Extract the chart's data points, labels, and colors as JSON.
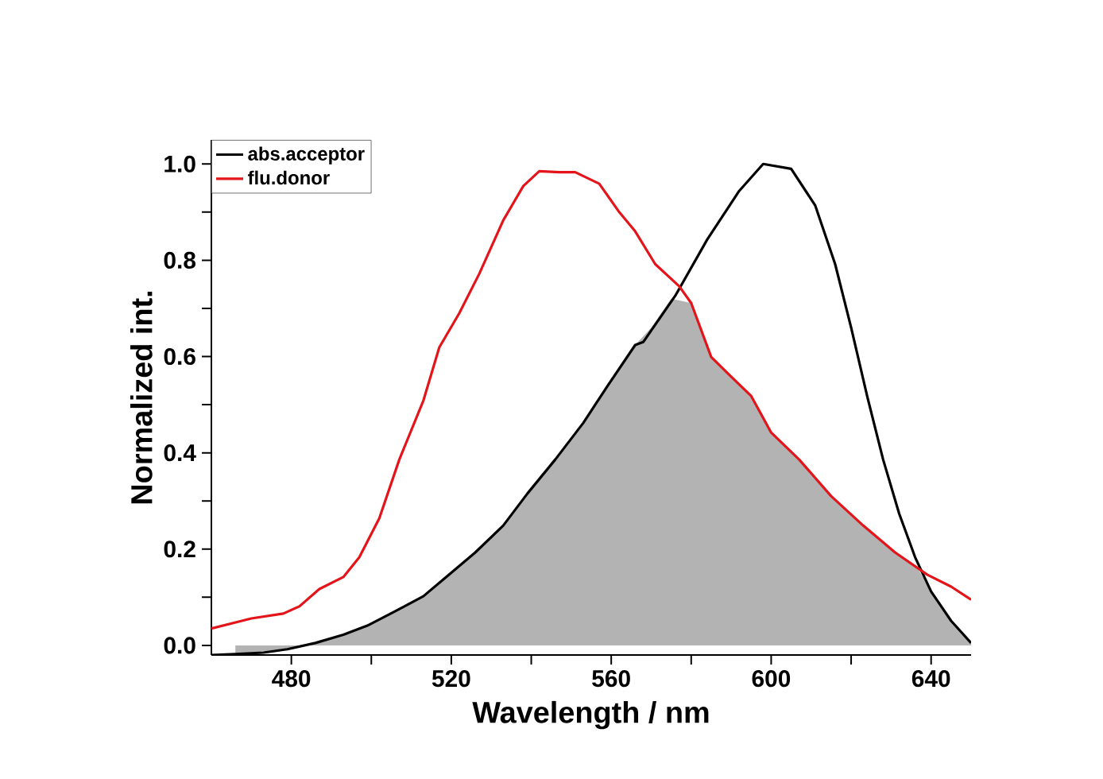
{
  "chart_data": {
    "type": "line",
    "xlabel": "Wavelength / nm",
    "ylabel": "Normalized int.",
    "xlim": [
      460,
      650
    ],
    "ylim": [
      -0.02,
      1.05
    ],
    "xticks": [
      480,
      {
        "value": 500,
        "label": null
      },
      520,
      {
        "value": 540,
        "label": null
      },
      560,
      {
        "value": 580,
        "label": null
      },
      600,
      {
        "value": 620,
        "label": null
      },
      640
    ],
    "yticks": [
      {
        "value": 0,
        "label": "0.0"
      },
      {
        "value": 0.1,
        "label": null
      },
      0.2,
      {
        "value": 0.3,
        "label": null
      },
      0.4,
      {
        "value": 0.5,
        "label": null
      },
      0.6,
      {
        "value": 0.7,
        "label": null
      },
      0.8,
      {
        "value": 0.9,
        "label": null
      },
      {
        "value": 1,
        "label": "1.0"
      }
    ],
    "legend": "top left",
    "grid": false,
    "marker": "none",
    "line_style": "solid",
    "series": [
      {
        "name": "abs.acceptor",
        "color": "#000000",
        "x": [
          460,
          466,
          473,
          479,
          486,
          493,
          499,
          506,
          513,
          519,
          526,
          533,
          539,
          546,
          553,
          559,
          566,
          568,
          576,
          584,
          592,
          598,
          605,
          611,
          616,
          620,
          624,
          628,
          632,
          636,
          640,
          645,
          650
        ],
        "values": [
          -0.02,
          -0.018,
          -0.015,
          -0.008,
          0.005,
          0.022,
          0.041,
          0.071,
          0.102,
          0.144,
          0.193,
          0.249,
          0.315,
          0.386,
          0.462,
          0.538,
          0.624,
          0.63,
          0.726,
          0.843,
          0.944,
          1.0,
          0.99,
          0.914,
          0.792,
          0.66,
          0.518,
          0.386,
          0.274,
          0.183,
          0.112,
          0.051,
          0.005
        ]
      },
      {
        "name": "flu.donor",
        "color": "#e3151b",
        "x": [
          460,
          470,
          478,
          482,
          487,
          493,
          497,
          502,
          507,
          513,
          517,
          522,
          527,
          533,
          538,
          542,
          547,
          551,
          557,
          562,
          566,
          571,
          577,
          580,
          585,
          590,
          595,
          600,
          607,
          615,
          623,
          631,
          639,
          645,
          650
        ],
        "values": [
          0.035,
          0.056,
          0.066,
          0.081,
          0.117,
          0.142,
          0.183,
          0.264,
          0.386,
          0.508,
          0.619,
          0.69,
          0.772,
          0.883,
          0.954,
          0.985,
          0.983,
          0.983,
          0.959,
          0.9,
          0.86,
          0.792,
          0.746,
          0.711,
          0.599,
          0.558,
          0.518,
          0.442,
          0.386,
          0.31,
          0.249,
          0.193,
          0.147,
          0.122,
          0.095
        ]
      },
      {
        "type": "area",
        "color": "#b3b3b3",
        "x": [
          466,
          479,
          486,
          493,
          499,
          506,
          513,
          519,
          526,
          533,
          539,
          546,
          553,
          559,
          566,
          570,
          575,
          580,
          585,
          590,
          595,
          600,
          607,
          615,
          623,
          631,
          637,
          640,
          645,
          650
        ],
        "values": [
          -0.018,
          -0.008,
          0.005,
          0.022,
          0.041,
          0.071,
          0.102,
          0.144,
          0.193,
          0.249,
          0.315,
          0.386,
          0.462,
          0.538,
          0.624,
          0.66,
          0.72,
          0.711,
          0.599,
          0.558,
          0.518,
          0.442,
          0.386,
          0.31,
          0.249,
          0.193,
          0.155,
          0.112,
          0.051,
          0.005
        ]
      }
    ]
  }
}
